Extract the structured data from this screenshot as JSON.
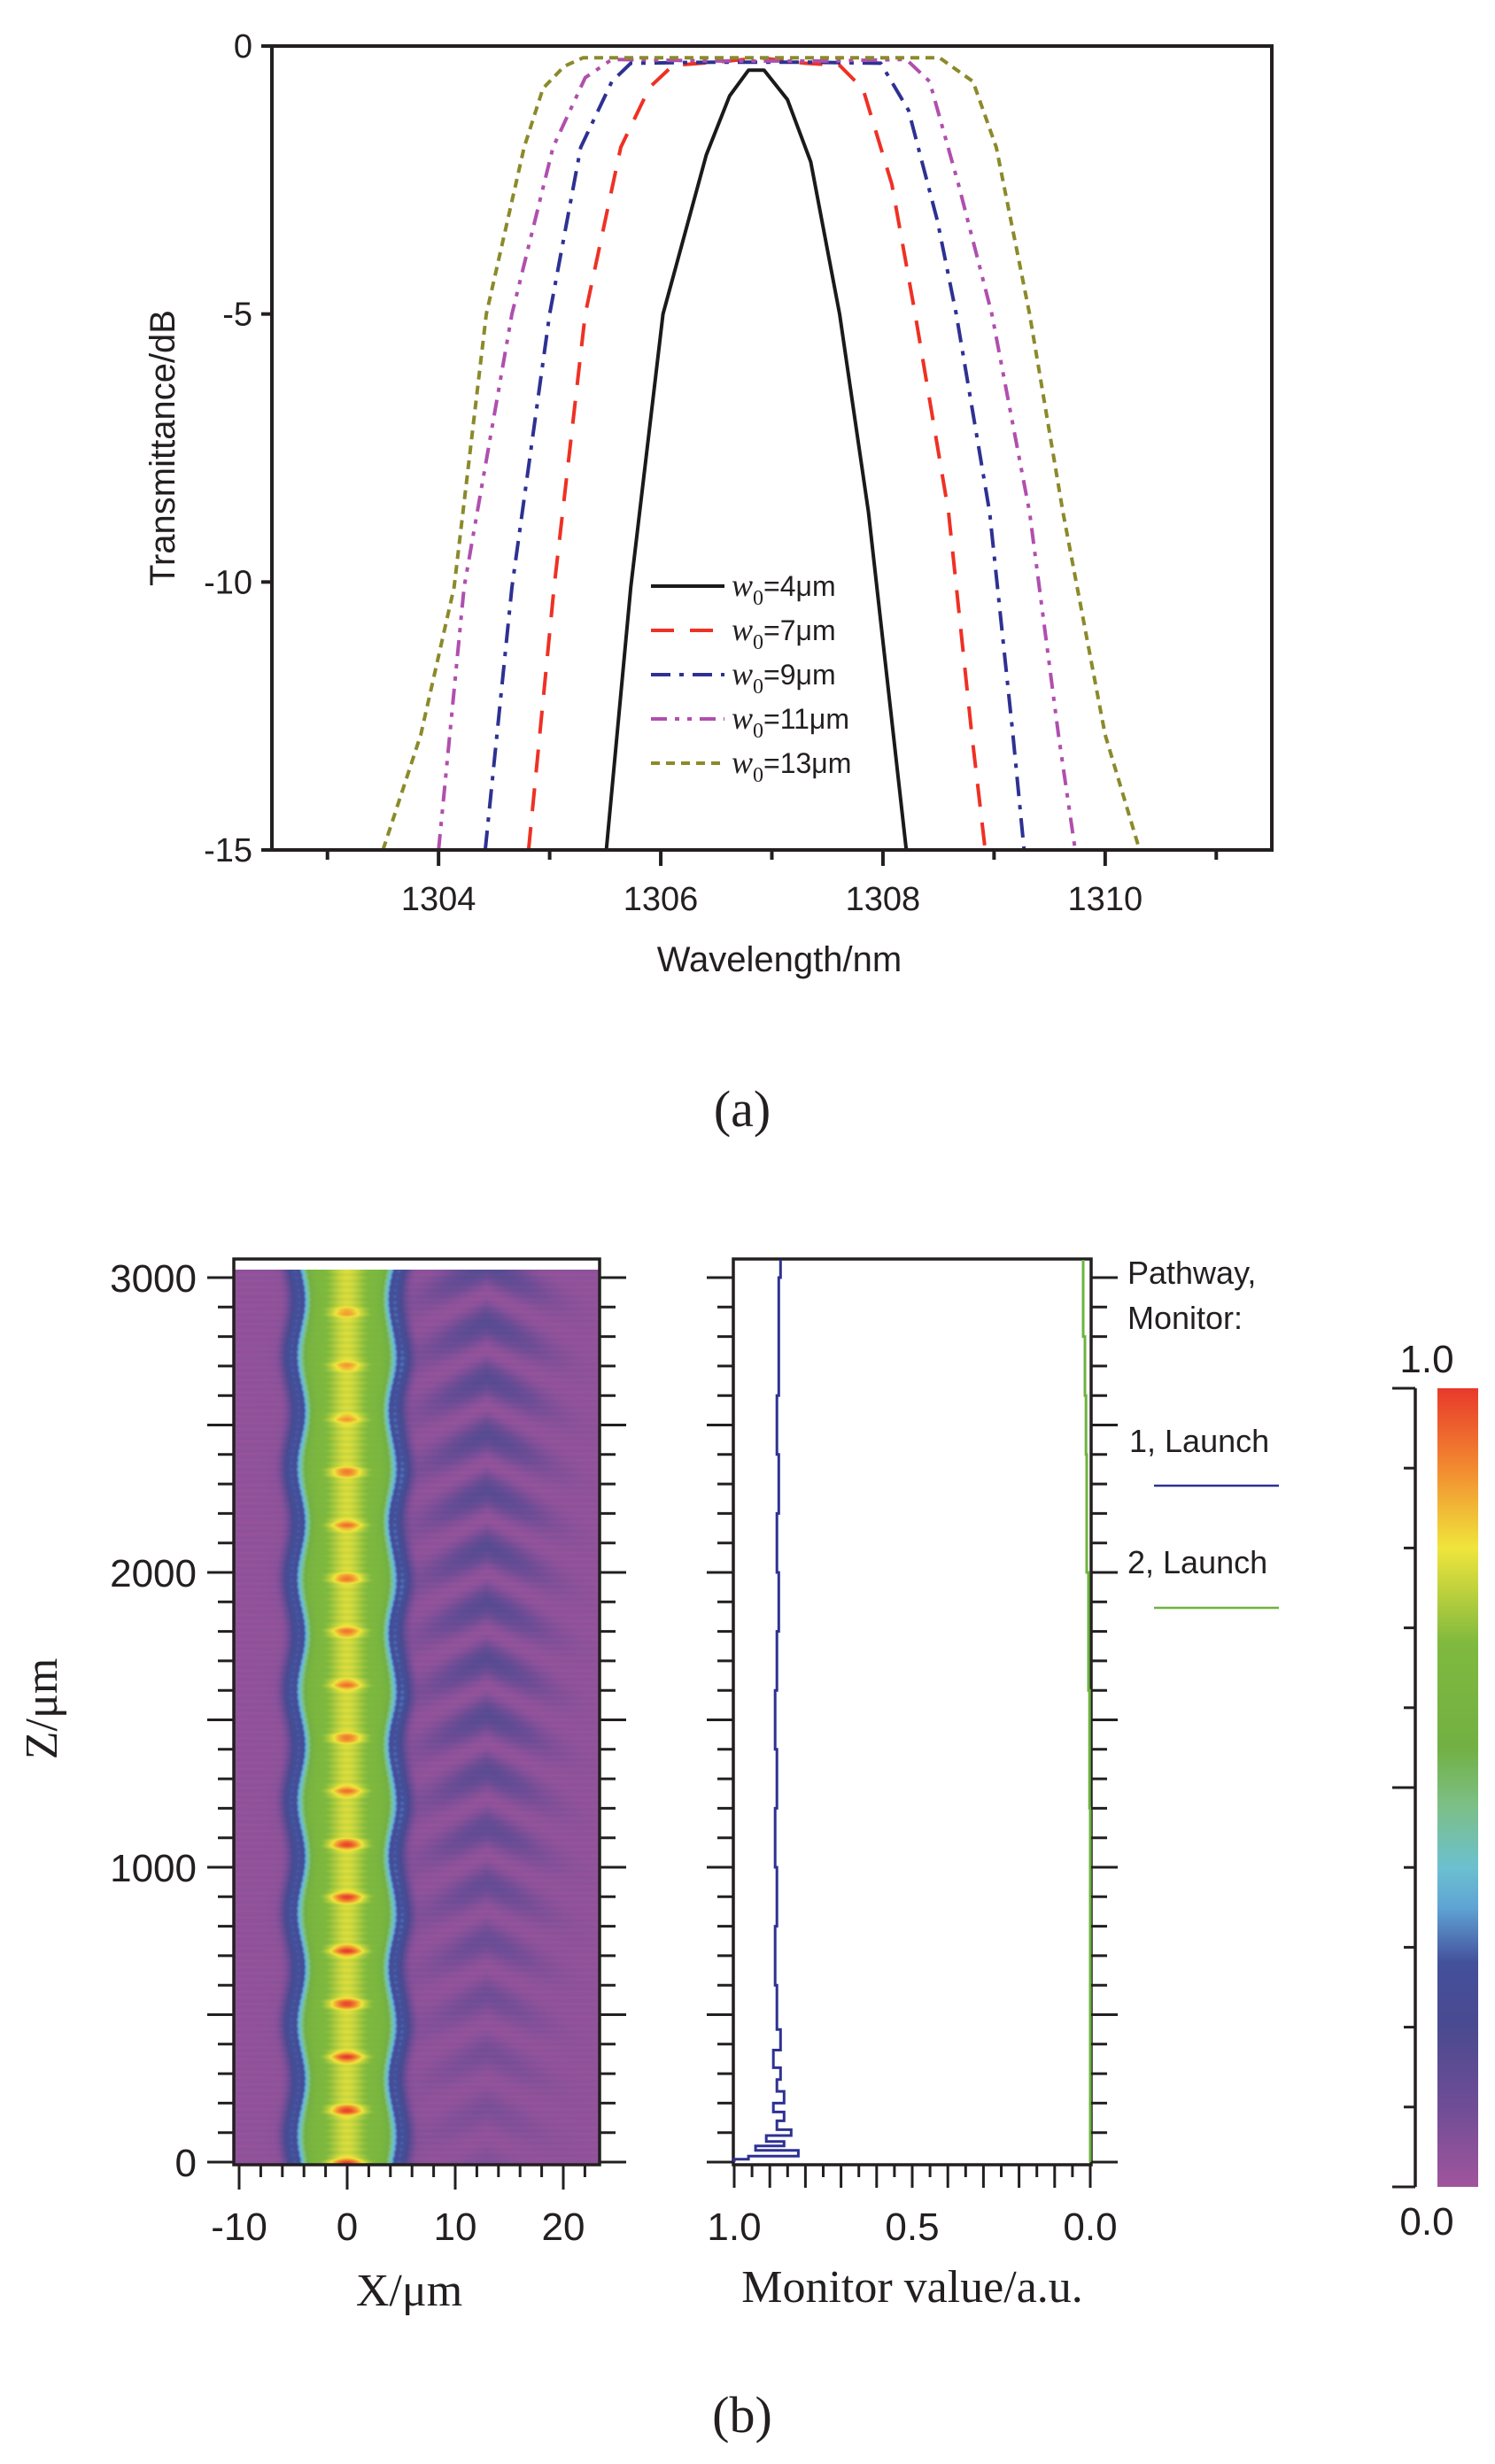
{
  "figure": {
    "caption_a": "(a)",
    "caption_b": "(b)"
  },
  "chart_data": [
    {
      "id": "a",
      "type": "line",
      "title": "",
      "xlabel": "Wavelength/nm",
      "ylabel": "Transmittance/dB",
      "xlim": [
        1302.5,
        1311.5
      ],
      "ylim": [
        -15,
        0
      ],
      "xticks": [
        1304,
        1306,
        1308,
        1310
      ],
      "xtick_labels": [
        "1304",
        "1306",
        "1308",
        "1310"
      ],
      "xminor_step": 1,
      "yticks": [
        0,
        -5,
        -10,
        -15
      ],
      "ytick_labels": [
        "0",
        "-5",
        "-10",
        "-15"
      ],
      "grid": false,
      "legend_position": "center-bottom",
      "series": [
        {
          "name": "w0=4μm",
          "legend_symbol": "w",
          "legend_sub": "0",
          "legend_suffix": "=4μm",
          "color": "#1a1a1a",
          "dash": "solid",
          "points": [
            [
              1305.51,
              -15
            ],
            [
              1305.73,
              -10.1
            ],
            [
              1306.02,
              -5.0
            ],
            [
              1306.41,
              -2.03
            ],
            [
              1306.62,
              -0.93
            ],
            [
              1306.79,
              -0.45
            ],
            [
              1306.93,
              -0.45
            ],
            [
              1307.14,
              -1.0
            ],
            [
              1307.35,
              -2.16
            ],
            [
              1307.61,
              -5.0
            ],
            [
              1307.87,
              -8.7
            ],
            [
              1308.21,
              -15
            ]
          ]
        },
        {
          "name": "w0=7μm",
          "legend_symbol": "w",
          "legend_sub": "0",
          "legend_suffix": "=7μm",
          "color": "#ee3124",
          "dash": "dash",
          "points": [
            [
              1304.81,
              -15
            ],
            [
              1305.04,
              -10.1
            ],
            [
              1305.32,
              -5.0
            ],
            [
              1305.64,
              -1.89
            ],
            [
              1305.9,
              -0.77
            ],
            [
              1306.11,
              -0.36
            ],
            [
              1306.5,
              -0.3
            ],
            [
              1306.9,
              -0.22
            ],
            [
              1307.3,
              -0.32
            ],
            [
              1307.61,
              -0.36
            ],
            [
              1307.82,
              -0.8
            ],
            [
              1308.08,
              -2.58
            ],
            [
              1308.29,
              -5.0
            ],
            [
              1308.59,
              -8.7
            ],
            [
              1308.8,
              -12.85
            ],
            [
              1308.92,
              -15
            ]
          ]
        },
        {
          "name": "w0=9μm",
          "legend_symbol": "w",
          "legend_sub": "0",
          "legend_suffix": "=9μm",
          "color": "#2e3192",
          "dash": "dashdot",
          "points": [
            [
              1304.42,
              -15
            ],
            [
              1304.66,
              -10.1
            ],
            [
              1305.0,
              -5.0
            ],
            [
              1305.28,
              -1.89
            ],
            [
              1305.56,
              -0.66
            ],
            [
              1305.73,
              -0.32
            ],
            [
              1306.5,
              -0.3
            ],
            [
              1307.3,
              -0.3
            ],
            [
              1307.98,
              -0.32
            ],
            [
              1308.23,
              -1.2
            ],
            [
              1308.49,
              -3.26
            ],
            [
              1308.66,
              -5.0
            ],
            [
              1308.96,
              -8.7
            ],
            [
              1309.17,
              -12.85
            ],
            [
              1309.27,
              -15
            ]
          ]
        },
        {
          "name": "w0=11μm",
          "legend_symbol": "w",
          "legend_sub": "0",
          "legend_suffix": "=11μm",
          "color": "#b04fae",
          "dash": "dashdotdot",
          "points": [
            [
              1304.0,
              -15
            ],
            [
              1304.23,
              -10.1
            ],
            [
              1304.66,
              -5.0
            ],
            [
              1305.03,
              -1.89
            ],
            [
              1305.32,
              -0.59
            ],
            [
              1305.56,
              -0.25
            ],
            [
              1306.5,
              -0.28
            ],
            [
              1307.5,
              -0.28
            ],
            [
              1308.21,
              -0.25
            ],
            [
              1308.42,
              -0.66
            ],
            [
              1308.68,
              -2.58
            ],
            [
              1308.98,
              -5.0
            ],
            [
              1309.32,
              -8.7
            ],
            [
              1309.58,
              -12.85
            ],
            [
              1309.73,
              -15
            ]
          ]
        },
        {
          "name": "w0=13μm",
          "legend_symbol": "w",
          "legend_sub": "0",
          "legend_suffix": "=13μm",
          "color": "#8b8a2b",
          "dash": "short-dash",
          "points": [
            [
              1303.5,
              -15
            ],
            [
              1303.84,
              -12.85
            ],
            [
              1304.14,
              -10.1
            ],
            [
              1304.43,
              -5.0
            ],
            [
              1304.77,
              -1.89
            ],
            [
              1304.94,
              -0.79
            ],
            [
              1305.13,
              -0.38
            ],
            [
              1305.3,
              -0.22
            ],
            [
              1306.5,
              -0.22
            ],
            [
              1307.5,
              -0.22
            ],
            [
              1308.51,
              -0.22
            ],
            [
              1308.81,
              -0.66
            ],
            [
              1309.02,
              -1.89
            ],
            [
              1309.32,
              -5.0
            ],
            [
              1309.62,
              -8.7
            ],
            [
              1310.0,
              -12.85
            ],
            [
              1310.31,
              -15
            ]
          ]
        }
      ]
    },
    {
      "id": "b-field",
      "type": "heatmap",
      "title": "",
      "xlabel": "X/μm",
      "ylabel": "Z/μm",
      "xlim": [
        -10.5,
        23.4
      ],
      "ylim": [
        0,
        3060
      ],
      "xticks": [
        -10,
        0,
        10,
        20
      ],
      "xtick_labels": [
        "-10",
        "0",
        "10",
        "20"
      ],
      "xminor_step": 2,
      "yticks": [
        0,
        1000,
        2000,
        3000
      ],
      "ytick_labels": [
        "0",
        "1000",
        "2000",
        "3000"
      ],
      "yminor_step": 100,
      "ymajor_step": 500,
      "value_range": [
        0,
        1
      ],
      "description": "Guided field intensity: bright core centered at X=0 (width about ±4 μm) with periodic hot spots along Z; weak interference pattern around X=8..18 μm; background near 0.",
      "core_center_x": 0,
      "core_half_width": 4.2,
      "core_level": 0.62,
      "hotspot_period_z": 180,
      "side_pattern_center_x": 13,
      "side_pattern_level": 0.13
    },
    {
      "id": "b-monitor",
      "type": "line",
      "title": "",
      "xlabel": "Monitor value/a.u.",
      "ylabel": "",
      "xlim": [
        1.0,
        0.0
      ],
      "ylim": [
        0,
        3060
      ],
      "xticks": [
        1.0,
        0.5,
        0.0
      ],
      "xtick_labels": [
        "1.0",
        "0.5",
        "0.0"
      ],
      "xminor_step": 0.05,
      "legend_title": [
        "Pathway,",
        "Monitor:"
      ],
      "legend_position": "right",
      "series": [
        {
          "name": "1, Launch",
          "color": "#2e3192",
          "points": [
            [
              1.0,
              0
            ],
            [
              0.96,
              10
            ],
            [
              0.82,
              20
            ],
            [
              0.94,
              40
            ],
            [
              0.86,
              55
            ],
            [
              0.91,
              70
            ],
            [
              0.84,
              90
            ],
            [
              0.88,
              110
            ],
            [
              0.86,
              140
            ],
            [
              0.89,
              170
            ],
            [
              0.86,
              200
            ],
            [
              0.88,
              240
            ],
            [
              0.87,
              280
            ],
            [
              0.89,
              320
            ],
            [
              0.87,
              380
            ],
            [
              0.88,
              450
            ],
            [
              0.885,
              600
            ],
            [
              0.88,
              800
            ],
            [
              0.885,
              1000
            ],
            [
              0.88,
              1200
            ],
            [
              0.885,
              1400
            ],
            [
              0.88,
              1600
            ],
            [
              0.875,
              1800
            ],
            [
              0.88,
              2000
            ],
            [
              0.875,
              2200
            ],
            [
              0.88,
              2400
            ],
            [
              0.875,
              2600
            ],
            [
              0.875,
              2800
            ],
            [
              0.87,
              3000
            ],
            [
              0.87,
              3060
            ]
          ]
        },
        {
          "name": "2, Launch",
          "color": "#6db33f",
          "points": [
            [
              0.0,
              0
            ],
            [
              0.0,
              1000
            ],
            [
              0.002,
              1200
            ],
            [
              0.005,
              1600
            ],
            [
              0.01,
              2000
            ],
            [
              0.012,
              2400
            ],
            [
              0.015,
              2600
            ],
            [
              0.02,
              2800
            ],
            [
              0.02,
              3060
            ]
          ]
        }
      ]
    },
    {
      "id": "b-colorbar",
      "type": "colorbar",
      "range": [
        0.0,
        1.0
      ],
      "tick_labels": [
        "1.0",
        "0.0"
      ],
      "minor_ticks": 10,
      "colors": [
        [
          0.0,
          "#a0559c"
        ],
        [
          0.1,
          "#6f4d96"
        ],
        [
          0.2,
          "#4a4a90"
        ],
        [
          0.28,
          "#43509b"
        ],
        [
          0.35,
          "#5fa4d4"
        ],
        [
          0.4,
          "#6cc0cf"
        ],
        [
          0.48,
          "#7cbf84"
        ],
        [
          0.55,
          "#72b043"
        ],
        [
          0.68,
          "#7fb93e"
        ],
        [
          0.8,
          "#f0e53c"
        ],
        [
          0.9,
          "#f28a30"
        ],
        [
          1.0,
          "#e8392b"
        ]
      ]
    }
  ]
}
